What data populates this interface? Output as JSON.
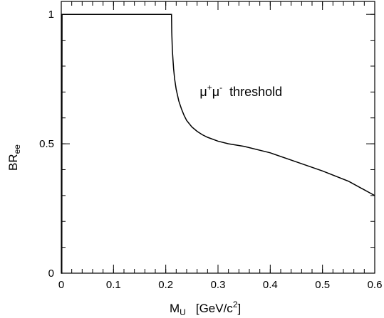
{
  "chart_data": {
    "type": "line",
    "xlabel": {
      "main": "M",
      "sub": "U",
      "units_pre": "[GeV/c",
      "units_sup": "2",
      "units_post": "]"
    },
    "ylabel": {
      "main": "BR",
      "sub": "ee"
    },
    "xlim": [
      0,
      0.6
    ],
    "ylim": [
      0,
      1.05
    ],
    "x_ticks": [
      {
        "value": 0,
        "label": "0"
      },
      {
        "value": 0.1,
        "label": "0.1"
      },
      {
        "value": 0.2,
        "label": "0.2"
      },
      {
        "value": 0.3,
        "label": "0.3"
      },
      {
        "value": 0.4,
        "label": "0.4"
      },
      {
        "value": 0.5,
        "label": "0.5"
      },
      {
        "value": 0.6,
        "label": "0.6"
      }
    ],
    "x_minor_step": 0.02,
    "y_ticks": [
      {
        "value": 0,
        "label": "0"
      },
      {
        "value": 0.5,
        "label": "0.5"
      },
      {
        "value": 1,
        "label": "1"
      }
    ],
    "y_minor_step": 0.1,
    "grid": false,
    "annotation": {
      "text_a": "μ",
      "sup_a": "+",
      "text_b": "μ",
      "sup_b": "-",
      "text_c": "threshold",
      "x": 0.265,
      "y": 0.685
    },
    "series": [
      {
        "x": [
          0.0,
          0.001,
          0.0015,
          0.05,
          0.1,
          0.15,
          0.2,
          0.211,
          0.2115,
          0.212,
          0.2125,
          0.213,
          0.214,
          0.215,
          0.217,
          0.22,
          0.225,
          0.23,
          0.235,
          0.24,
          0.25,
          0.26,
          0.27,
          0.28,
          0.3,
          0.32,
          0.35,
          0.4,
          0.45,
          0.5,
          0.55,
          0.6
        ],
        "y": [
          0.0,
          0.0,
          1.0,
          1.0,
          1.0,
          1.0,
          1.0,
          1.0,
          0.93,
          0.9,
          0.87,
          0.85,
          0.82,
          0.79,
          0.75,
          0.71,
          0.665,
          0.635,
          0.61,
          0.59,
          0.565,
          0.548,
          0.535,
          0.525,
          0.51,
          0.5,
          0.49,
          0.465,
          0.43,
          0.395,
          0.355,
          0.3
        ]
      }
    ]
  }
}
